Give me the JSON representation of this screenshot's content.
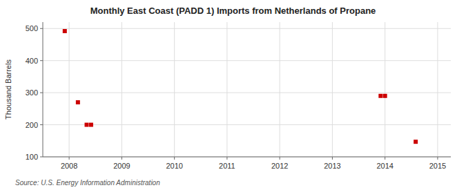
{
  "chart_data": {
    "type": "scatter",
    "title": "Monthly East Coast (PADD 1) Imports from Netherlands of Propane",
    "ylabel": "Thousand Barrels",
    "source": "Source: U.S. Energy Information Administration",
    "x": [
      2007.917,
      2008.167,
      2008.333,
      2008.417,
      2013.917,
      2014.0,
      2014.583
    ],
    "values": [
      492,
      270,
      200,
      200,
      290,
      290,
      147
    ],
    "color": "#cc0000",
    "marker": "square",
    "xlim": [
      2007.5,
      2015.25
    ],
    "ylim": [
      100,
      520
    ],
    "xticks": [
      2008,
      2009,
      2010,
      2011,
      2012,
      2013,
      2014,
      2015
    ],
    "yticks": [
      100,
      200,
      300,
      400,
      500
    ],
    "grid": true
  }
}
